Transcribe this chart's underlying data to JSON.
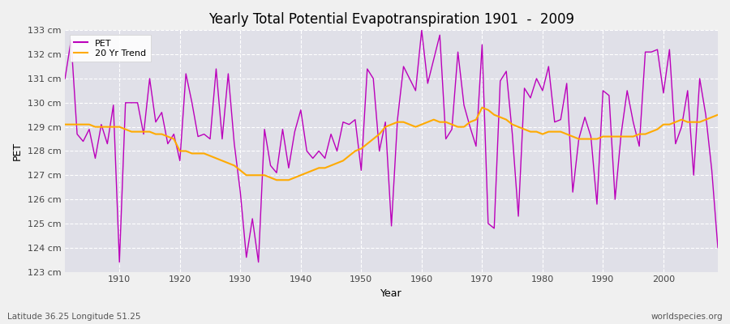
{
  "title": "Yearly Total Potential Evapotranspiration 1901  -  2009",
  "xlabel": "Year",
  "ylabel": "PET",
  "subtitle_left": "Latitude 36.25 Longitude 51.25",
  "subtitle_right": "worldspecies.org",
  "pet_color": "#bb00bb",
  "trend_color": "#ffaa00",
  "background_color": "#f0f0f0",
  "plot_bg_color": "#e0e0e8",
  "ylim": [
    123,
    133
  ],
  "yticks": [
    123,
    124,
    125,
    126,
    127,
    128,
    129,
    130,
    131,
    132,
    133
  ],
  "xlim_left": 1901,
  "xlim_right": 2009,
  "xticks": [
    1910,
    1920,
    1930,
    1940,
    1950,
    1960,
    1970,
    1980,
    1990,
    2000
  ],
  "years": [
    1901,
    1902,
    1903,
    1904,
    1905,
    1906,
    1907,
    1908,
    1909,
    1910,
    1911,
    1912,
    1913,
    1914,
    1915,
    1916,
    1917,
    1918,
    1919,
    1920,
    1921,
    1922,
    1923,
    1924,
    1925,
    1926,
    1927,
    1928,
    1929,
    1930,
    1931,
    1932,
    1933,
    1934,
    1935,
    1936,
    1937,
    1938,
    1939,
    1940,
    1941,
    1942,
    1943,
    1944,
    1945,
    1946,
    1947,
    1948,
    1949,
    1950,
    1951,
    1952,
    1953,
    1954,
    1955,
    1956,
    1957,
    1958,
    1959,
    1960,
    1961,
    1962,
    1963,
    1964,
    1965,
    1966,
    1967,
    1968,
    1969,
    1970,
    1971,
    1972,
    1973,
    1974,
    1975,
    1976,
    1977,
    1978,
    1979,
    1980,
    1981,
    1982,
    1983,
    1984,
    1985,
    1986,
    1987,
    1988,
    1989,
    1990,
    1991,
    1992,
    1993,
    1994,
    1995,
    1996,
    1997,
    1998,
    1999,
    2000,
    2001,
    2002,
    2003,
    2004,
    2005,
    2006,
    2007,
    2008,
    2009
  ],
  "pet_values": [
    131.0,
    132.6,
    128.7,
    128.4,
    128.9,
    127.7,
    129.1,
    128.3,
    129.9,
    123.4,
    130.0,
    130.0,
    130.0,
    128.7,
    131.0,
    129.2,
    129.6,
    128.3,
    128.7,
    127.6,
    131.2,
    130.0,
    128.6,
    128.7,
    128.5,
    131.4,
    128.5,
    131.2,
    128.3,
    126.3,
    123.6,
    125.2,
    123.4,
    128.9,
    127.4,
    127.1,
    128.9,
    127.3,
    128.8,
    129.7,
    128.0,
    127.7,
    128.0,
    127.7,
    128.7,
    128.0,
    129.2,
    129.1,
    129.3,
    127.2,
    131.4,
    131.0,
    128.0,
    129.2,
    124.9,
    129.3,
    131.5,
    131.0,
    130.5,
    133.0,
    130.8,
    131.8,
    132.8,
    128.5,
    128.9,
    132.1,
    129.9,
    129.0,
    128.2,
    132.4,
    125.0,
    124.8,
    130.9,
    131.3,
    128.7,
    125.3,
    130.6,
    130.2,
    131.0,
    130.5,
    131.5,
    129.2,
    129.3,
    130.8,
    126.3,
    128.5,
    129.4,
    128.6,
    125.8,
    130.5,
    130.3,
    126.0,
    128.7,
    130.5,
    129.2,
    128.2,
    132.1,
    132.1,
    132.2,
    130.4,
    132.2,
    128.3,
    129.0,
    130.5,
    127.0,
    131.0,
    129.5,
    127.2,
    124.0
  ],
  "trend_years": [
    1901,
    1902,
    1903,
    1904,
    1905,
    1906,
    1907,
    1908,
    1909,
    1910,
    1911,
    1912,
    1913,
    1914,
    1915,
    1916,
    1917,
    1918,
    1919,
    1920,
    1921,
    1922,
    1923,
    1924,
    1925,
    1926,
    1927,
    1928,
    1929,
    1930,
    1931,
    1932,
    1933,
    1934,
    1935,
    1936,
    1937,
    1938,
    1939,
    1940,
    1941,
    1942,
    1943,
    1944,
    1945,
    1946,
    1947,
    1948,
    1949,
    1950,
    1951,
    1952,
    1953,
    1954,
    1955,
    1956,
    1957,
    1958,
    1959,
    1960,
    1961,
    1962,
    1963,
    1964,
    1965,
    1966,
    1967,
    1968,
    1969,
    1970,
    1971,
    1972,
    1973,
    1974,
    1975,
    1976,
    1977,
    1978,
    1979,
    1980,
    1981,
    1982,
    1983,
    1984,
    1985,
    1986,
    1987,
    1988,
    1989,
    1990,
    1991,
    1992,
    1993,
    1994,
    1995,
    1996,
    1997,
    1998,
    1999,
    2000,
    2001,
    2002,
    2003,
    2004,
    2005,
    2006,
    2007,
    2008,
    2009
  ],
  "trend_values": [
    129.1,
    129.1,
    129.1,
    129.1,
    129.1,
    129.0,
    129.0,
    129.0,
    129.0,
    129.0,
    128.9,
    128.8,
    128.8,
    128.8,
    128.8,
    128.7,
    128.7,
    128.6,
    128.5,
    128.0,
    128.0,
    127.9,
    127.9,
    127.9,
    127.8,
    127.7,
    127.6,
    127.5,
    127.4,
    127.2,
    127.0,
    127.0,
    127.0,
    127.0,
    126.9,
    126.8,
    126.8,
    126.8,
    126.9,
    127.0,
    127.1,
    127.2,
    127.3,
    127.3,
    127.4,
    127.5,
    127.6,
    127.8,
    128.0,
    128.1,
    128.3,
    128.5,
    128.7,
    129.0,
    129.1,
    129.2,
    129.2,
    129.1,
    129.0,
    129.1,
    129.2,
    129.3,
    129.2,
    129.2,
    129.1,
    129.0,
    129.0,
    129.2,
    129.3,
    129.8,
    129.7,
    129.5,
    129.4,
    129.3,
    129.1,
    129.0,
    128.9,
    128.8,
    128.8,
    128.7,
    128.8,
    128.8,
    128.8,
    128.7,
    128.6,
    128.5,
    128.5,
    128.5,
    128.5,
    128.6,
    128.6,
    128.6,
    128.6,
    128.6,
    128.6,
    128.7,
    128.7,
    128.8,
    128.9,
    129.1,
    129.1,
    129.2,
    129.3,
    129.2,
    129.2,
    129.2,
    129.3,
    129.4,
    129.5
  ]
}
